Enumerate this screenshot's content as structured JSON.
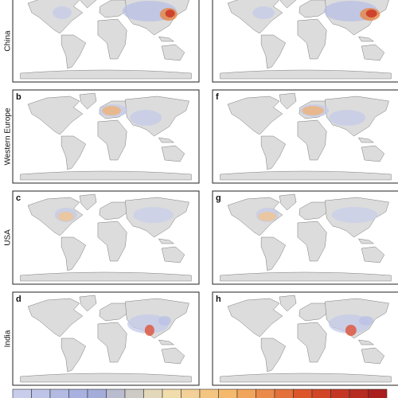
{
  "rows": [
    {
      "label": "China"
    },
    {
      "label": "Western Europe",
      "letters": [
        "b",
        "f"
      ]
    },
    {
      "label": "USA",
      "letters": [
        "c",
        "g"
      ]
    },
    {
      "label": "India",
      "letters": [
        "d",
        "h"
      ]
    }
  ]
}
